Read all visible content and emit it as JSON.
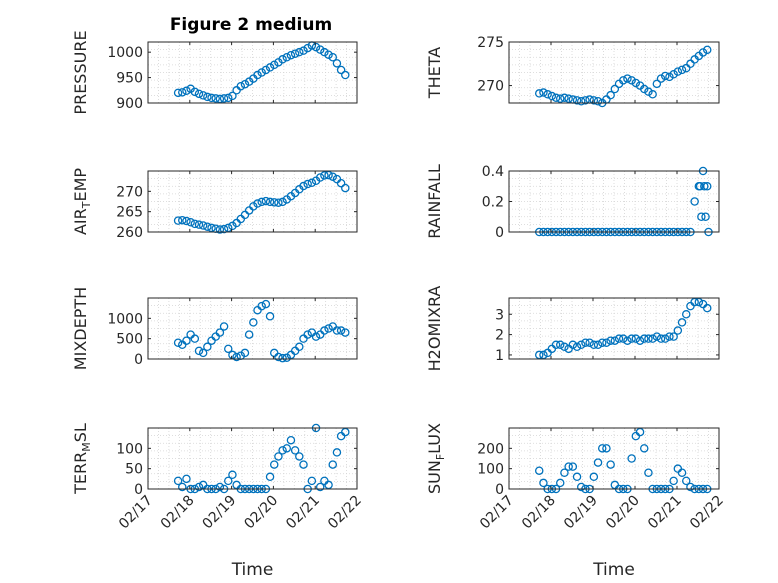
{
  "figure": {
    "title": "Figure 2 medium"
  },
  "colors": {
    "marker": "#0072BD",
    "grid": "#d4d4d4",
    "axis": "#262626"
  },
  "chart_data": [
    {
      "type": "scatter",
      "name": "pressure",
      "ylabel": "PRESSURE",
      "xlabel": "",
      "ylim": [
        900,
        1020
      ],
      "yticks": [
        900,
        950,
        1000
      ],
      "ytick_labels": [
        "900",
        "950",
        "1000"
      ],
      "x": [
        17.72,
        17.82,
        17.92,
        18.02,
        18.12,
        18.22,
        18.32,
        18.42,
        18.52,
        18.62,
        18.72,
        18.82,
        18.92,
        19.02,
        19.12,
        19.22,
        19.32,
        19.42,
        19.52,
        19.62,
        19.72,
        19.82,
        19.92,
        20.02,
        20.12,
        20.22,
        20.32,
        20.42,
        20.52,
        20.62,
        20.72,
        20.82,
        20.92,
        21.02,
        21.12,
        21.22,
        21.32,
        21.42,
        21.52,
        21.62,
        21.72
      ],
      "y": [
        920,
        921,
        924,
        928,
        922,
        918,
        915,
        912,
        910,
        909,
        908,
        909,
        910,
        914,
        925,
        933,
        937,
        942,
        948,
        955,
        960,
        965,
        970,
        975,
        980,
        986,
        990,
        994,
        997,
        1000,
        1003,
        1008,
        1013,
        1010,
        1005,
        1000,
        995,
        990,
        978,
        965,
        955
      ]
    },
    {
      "type": "scatter",
      "name": "theta",
      "ylabel": "THETA",
      "xlabel": "",
      "ylim": [
        268,
        275
      ],
      "yticks": [
        270,
        275
      ],
      "ytick_labels": [
        "270",
        "275"
      ],
      "x": [
        17.72,
        17.82,
        17.92,
        18.02,
        18.12,
        18.22,
        18.32,
        18.42,
        18.52,
        18.62,
        18.72,
        18.82,
        18.92,
        19.02,
        19.12,
        19.22,
        19.32,
        19.42,
        19.52,
        19.62,
        19.72,
        19.82,
        19.92,
        20.02,
        20.12,
        20.22,
        20.32,
        20.42,
        20.52,
        20.62,
        20.72,
        20.82,
        20.92,
        21.02,
        21.12,
        21.22,
        21.32,
        21.42,
        21.52,
        21.62,
        21.72
      ],
      "y": [
        269.1,
        269.2,
        269.0,
        268.8,
        268.6,
        268.5,
        268.6,
        268.5,
        268.4,
        268.3,
        268.2,
        268.3,
        268.4,
        268.3,
        268.2,
        268.0,
        268.4,
        268.9,
        269.6,
        270.2,
        270.6,
        270.8,
        270.6,
        270.3,
        270.0,
        269.6,
        269.3,
        269.0,
        270.2,
        270.8,
        271.1,
        271.0,
        271.3,
        271.6,
        271.8,
        272.0,
        272.5,
        273.0,
        273.4,
        273.8,
        274.1
      ]
    },
    {
      "type": "scatter",
      "name": "air_temp",
      "ylabel": "AIR_TEMP",
      "xlabel": "",
      "ylim": [
        260,
        275
      ],
      "yticks": [
        260,
        265,
        270
      ],
      "ytick_labels": [
        "260",
        "265",
        "270"
      ],
      "x": [
        17.72,
        17.82,
        17.92,
        18.02,
        18.12,
        18.22,
        18.32,
        18.42,
        18.52,
        18.62,
        18.72,
        18.82,
        18.92,
        19.02,
        19.12,
        19.22,
        19.32,
        19.42,
        19.52,
        19.62,
        19.72,
        19.82,
        19.92,
        20.02,
        20.12,
        20.22,
        20.32,
        20.42,
        20.52,
        20.62,
        20.72,
        20.82,
        20.92,
        21.02,
        21.12,
        21.22,
        21.32,
        21.42,
        21.52,
        21.62,
        21.72
      ],
      "y": [
        262.8,
        262.9,
        262.7,
        262.4,
        262.0,
        261.8,
        261.6,
        261.3,
        261.0,
        260.8,
        260.6,
        260.7,
        261.0,
        261.5,
        262.2,
        263.2,
        264.2,
        265.3,
        266.3,
        267.0,
        267.4,
        267.6,
        267.4,
        267.3,
        267.2,
        267.4,
        268.0,
        268.8,
        269.6,
        270.5,
        271.3,
        271.8,
        272.1,
        272.6,
        273.4,
        273.9,
        274.0,
        273.6,
        273.0,
        272.0,
        270.8
      ]
    },
    {
      "type": "scatter",
      "name": "rainfall",
      "ylabel": "RAINFALL",
      "xlabel": "",
      "ylim": [
        0,
        0.4
      ],
      "yticks": [
        0,
        0.2,
        0.4
      ],
      "ytick_labels": [
        "0",
        "0.2",
        "0.4"
      ],
      "x": [
        17.72,
        17.82,
        17.92,
        18.02,
        18.12,
        18.22,
        18.32,
        18.42,
        18.52,
        18.62,
        18.72,
        18.82,
        18.92,
        19.02,
        19.12,
        19.22,
        19.32,
        19.42,
        19.52,
        19.62,
        19.72,
        19.82,
        19.92,
        20.02,
        20.12,
        20.22,
        20.32,
        20.42,
        20.52,
        20.62,
        20.72,
        20.82,
        20.92,
        21.02,
        21.12,
        21.22,
        21.32,
        21.42,
        21.52,
        21.55,
        21.58,
        21.62,
        21.65,
        21.68,
        21.72,
        21.75
      ],
      "y": [
        0,
        0,
        0,
        0,
        0,
        0,
        0,
        0,
        0,
        0,
        0,
        0,
        0,
        0,
        0,
        0,
        0,
        0,
        0,
        0,
        0,
        0,
        0,
        0,
        0,
        0,
        0,
        0,
        0,
        0,
        0,
        0,
        0,
        0,
        0,
        0,
        0,
        0.2,
        0.3,
        0.3,
        0.1,
        0.4,
        0.3,
        0.1,
        0.3,
        0
      ]
    },
    {
      "type": "scatter",
      "name": "mixdepth",
      "ylabel": "MIXDEPTH",
      "xlabel": "",
      "ylim": [
        0,
        1500
      ],
      "yticks": [
        0,
        500,
        1000
      ],
      "ytick_labels": [
        "0",
        "500",
        "1000"
      ],
      "x": [
        17.72,
        17.82,
        17.92,
        18.02,
        18.12,
        18.22,
        18.32,
        18.42,
        18.52,
        18.62,
        18.72,
        18.82,
        18.92,
        19.02,
        19.12,
        19.22,
        19.32,
        19.42,
        19.52,
        19.62,
        19.72,
        19.82,
        19.92,
        20.02,
        20.12,
        20.22,
        20.32,
        20.42,
        20.52,
        20.62,
        20.72,
        20.82,
        20.92,
        21.02,
        21.12,
        21.22,
        21.32,
        21.42,
        21.52,
        21.62,
        21.72
      ],
      "y": [
        400,
        350,
        450,
        600,
        500,
        200,
        150,
        300,
        450,
        550,
        650,
        800,
        250,
        100,
        50,
        80,
        150,
        600,
        900,
        1200,
        1300,
        1350,
        1050,
        150,
        50,
        20,
        30,
        100,
        200,
        300,
        500,
        600,
        650,
        550,
        600,
        700,
        750,
        800,
        700,
        700,
        650
      ]
    },
    {
      "type": "scatter",
      "name": "h2omixra",
      "ylabel": "H2OMIXRA",
      "xlabel": "",
      "ylim": [
        0.8,
        3.8
      ],
      "yticks": [
        1,
        2,
        3
      ],
      "ytick_labels": [
        "1",
        "2",
        "3"
      ],
      "x": [
        17.72,
        17.82,
        17.92,
        18.02,
        18.12,
        18.22,
        18.32,
        18.42,
        18.52,
        18.62,
        18.72,
        18.82,
        18.92,
        19.02,
        19.12,
        19.22,
        19.32,
        19.42,
        19.52,
        19.62,
        19.72,
        19.82,
        19.92,
        20.02,
        20.12,
        20.22,
        20.32,
        20.42,
        20.52,
        20.62,
        20.72,
        20.82,
        20.92,
        21.02,
        21.12,
        21.22,
        21.32,
        21.42,
        21.52,
        21.62,
        21.72
      ],
      "y": [
        1.0,
        1.0,
        1.1,
        1.3,
        1.5,
        1.5,
        1.4,
        1.3,
        1.5,
        1.4,
        1.5,
        1.6,
        1.6,
        1.5,
        1.5,
        1.6,
        1.6,
        1.7,
        1.7,
        1.8,
        1.8,
        1.7,
        1.8,
        1.8,
        1.7,
        1.8,
        1.8,
        1.8,
        1.9,
        1.8,
        1.8,
        1.9,
        1.9,
        2.2,
        2.6,
        3.0,
        3.4,
        3.6,
        3.6,
        3.5,
        3.3
      ]
    },
    {
      "type": "scatter",
      "name": "terr_msl",
      "ylabel": "TERR_MSL",
      "xlabel": "Time",
      "ylim": [
        0,
        150
      ],
      "yticks": [
        0,
        50,
        100
      ],
      "ytick_labels": [
        "0",
        "50",
        "100"
      ],
      "x": [
        17.72,
        17.82,
        17.92,
        18.02,
        18.12,
        18.22,
        18.32,
        18.42,
        18.52,
        18.62,
        18.72,
        18.82,
        18.92,
        19.02,
        19.12,
        19.22,
        19.32,
        19.42,
        19.52,
        19.62,
        19.72,
        19.82,
        19.92,
        20.02,
        20.12,
        20.22,
        20.32,
        20.42,
        20.52,
        20.62,
        20.72,
        20.82,
        20.92,
        21.02,
        21.12,
        21.22,
        21.32,
        21.42,
        21.52,
        21.62,
        21.72
      ],
      "y": [
        20,
        5,
        25,
        0,
        0,
        5,
        10,
        0,
        0,
        0,
        5,
        0,
        20,
        35,
        10,
        0,
        0,
        0,
        0,
        0,
        0,
        0,
        30,
        60,
        80,
        95,
        100,
        120,
        95,
        80,
        60,
        0,
        20,
        150,
        5,
        20,
        10,
        60,
        90,
        130,
        140
      ]
    },
    {
      "type": "scatter",
      "name": "sun_flux",
      "ylabel": "SUN_FLUX",
      "xlabel": "Time",
      "ylim": [
        0,
        300
      ],
      "yticks": [
        0,
        100,
        200
      ],
      "ytick_labels": [
        "0",
        "100",
        "200"
      ],
      "x": [
        17.72,
        17.82,
        17.92,
        18.02,
        18.12,
        18.22,
        18.32,
        18.42,
        18.52,
        18.62,
        18.72,
        18.82,
        18.92,
        19.02,
        19.12,
        19.22,
        19.32,
        19.42,
        19.52,
        19.62,
        19.72,
        19.82,
        19.92,
        20.02,
        20.12,
        20.22,
        20.32,
        20.42,
        20.52,
        20.62,
        20.72,
        20.82,
        20.92,
        21.02,
        21.12,
        21.22,
        21.32,
        21.42,
        21.52,
        21.62,
        21.72
      ],
      "y": [
        90,
        30,
        0,
        0,
        0,
        30,
        80,
        110,
        110,
        60,
        10,
        0,
        0,
        60,
        130,
        200,
        200,
        120,
        20,
        0,
        0,
        0,
        150,
        260,
        280,
        200,
        80,
        0,
        0,
        0,
        0,
        0,
        40,
        100,
        80,
        40,
        10,
        0,
        0,
        0,
        0
      ]
    }
  ],
  "x_axis": {
    "xlim": [
      17.0,
      22.0
    ],
    "ticks": [
      17,
      18,
      19,
      20,
      21,
      22
    ],
    "tick_labels": [
      "02/17",
      "02/18",
      "02/19",
      "02/20",
      "02/21",
      "02/22"
    ]
  }
}
